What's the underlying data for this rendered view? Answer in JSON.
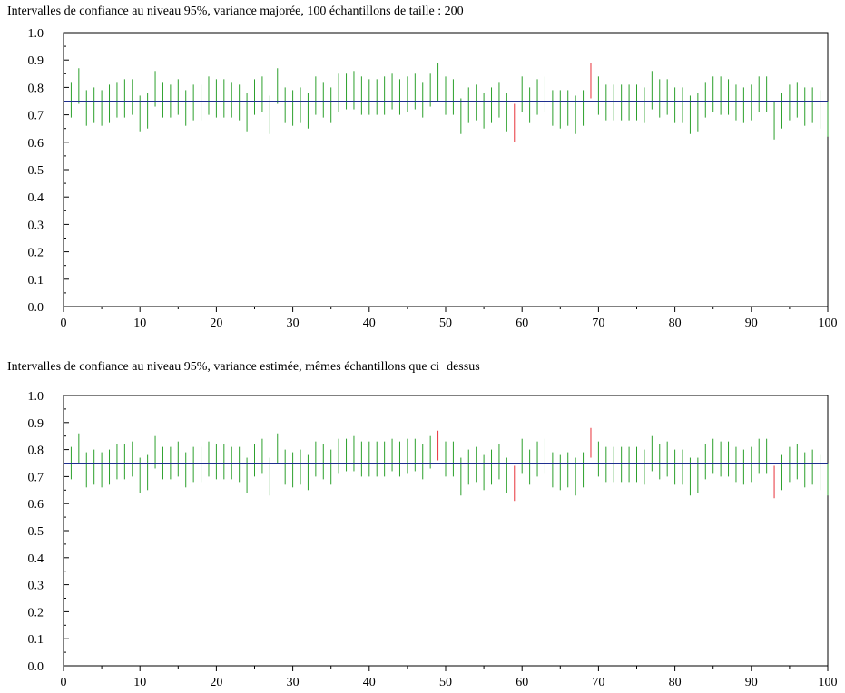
{
  "chart_data": [
    {
      "type": "interval",
      "title": "Intervalles de confiance au niveau 95%, variance majorée, 100 échantillons de taille : 200",
      "xlim": [
        0,
        100
      ],
      "ylim": [
        0.0,
        1.0
      ],
      "xticks": [
        0,
        10,
        20,
        30,
        40,
        50,
        60,
        70,
        80,
        90,
        100
      ],
      "xtick_labels": [
        "0",
        "10",
        "20",
        "30",
        "40",
        "50",
        "60",
        "70",
        "80",
        "90",
        "100"
      ],
      "yticks": [
        0.0,
        0.1,
        0.2,
        0.3,
        0.4,
        0.5,
        0.6,
        0.7,
        0.8,
        0.9,
        1.0
      ],
      "ytick_labels": [
        "0.0",
        "0.1",
        "0.2",
        "0.3",
        "0.4",
        "0.5",
        "0.6",
        "0.7",
        "0.8",
        "0.9",
        "1.0"
      ],
      "reference_line": 0.75,
      "grid": false,
      "colors": {
        "contains": "#2ca02c",
        "misses": "#e8323a",
        "reference": "#1f2f8f"
      },
      "intervals": [
        [
          0.69,
          0.82
        ],
        [
          0.74,
          0.87
        ],
        [
          0.66,
          0.79
        ],
        [
          0.67,
          0.8
        ],
        [
          0.66,
          0.79
        ],
        [
          0.67,
          0.81
        ],
        [
          0.69,
          0.82
        ],
        [
          0.69,
          0.83
        ],
        [
          0.7,
          0.83
        ],
        [
          0.64,
          0.77
        ],
        [
          0.65,
          0.78
        ],
        [
          0.73,
          0.86
        ],
        [
          0.69,
          0.82
        ],
        [
          0.69,
          0.81
        ],
        [
          0.7,
          0.83
        ],
        [
          0.66,
          0.79
        ],
        [
          0.68,
          0.81
        ],
        [
          0.68,
          0.81
        ],
        [
          0.7,
          0.84
        ],
        [
          0.69,
          0.83
        ],
        [
          0.69,
          0.83
        ],
        [
          0.69,
          0.82
        ],
        [
          0.68,
          0.81
        ],
        [
          0.64,
          0.78
        ],
        [
          0.7,
          0.83
        ],
        [
          0.71,
          0.84
        ],
        [
          0.63,
          0.77
        ],
        [
          0.74,
          0.87
        ],
        [
          0.67,
          0.8
        ],
        [
          0.66,
          0.79
        ],
        [
          0.67,
          0.8
        ],
        [
          0.65,
          0.78
        ],
        [
          0.7,
          0.84
        ],
        [
          0.69,
          0.82
        ],
        [
          0.67,
          0.8
        ],
        [
          0.71,
          0.85
        ],
        [
          0.72,
          0.85
        ],
        [
          0.72,
          0.86
        ],
        [
          0.7,
          0.84
        ],
        [
          0.7,
          0.83
        ],
        [
          0.7,
          0.83
        ],
        [
          0.7,
          0.84
        ],
        [
          0.72,
          0.85
        ],
        [
          0.7,
          0.83
        ],
        [
          0.71,
          0.84
        ],
        [
          0.72,
          0.85
        ],
        [
          0.69,
          0.82
        ],
        [
          0.73,
          0.85
        ],
        [
          0.75,
          0.89
        ],
        [
          0.7,
          0.84
        ],
        [
          0.7,
          0.83
        ],
        [
          0.63,
          0.76
        ],
        [
          0.67,
          0.8
        ],
        [
          0.68,
          0.81
        ],
        [
          0.65,
          0.78
        ],
        [
          0.67,
          0.8
        ],
        [
          0.69,
          0.82
        ],
        [
          0.64,
          0.78
        ],
        [
          0.6,
          0.74
        ],
        [
          0.71,
          0.84
        ],
        [
          0.67,
          0.8
        ],
        [
          0.7,
          0.83
        ],
        [
          0.71,
          0.84
        ],
        [
          0.66,
          0.79
        ],
        [
          0.65,
          0.79
        ],
        [
          0.66,
          0.79
        ],
        [
          0.63,
          0.77
        ],
        [
          0.66,
          0.79
        ],
        [
          0.76,
          0.89
        ],
        [
          0.7,
          0.84
        ],
        [
          0.68,
          0.81
        ],
        [
          0.68,
          0.81
        ],
        [
          0.68,
          0.81
        ],
        [
          0.68,
          0.81
        ],
        [
          0.68,
          0.81
        ],
        [
          0.67,
          0.8
        ],
        [
          0.72,
          0.86
        ],
        [
          0.69,
          0.83
        ],
        [
          0.7,
          0.83
        ],
        [
          0.67,
          0.8
        ],
        [
          0.67,
          0.8
        ],
        [
          0.63,
          0.77
        ],
        [
          0.64,
          0.78
        ],
        [
          0.69,
          0.82
        ],
        [
          0.71,
          0.84
        ],
        [
          0.7,
          0.84
        ],
        [
          0.7,
          0.83
        ],
        [
          0.68,
          0.81
        ],
        [
          0.67,
          0.8
        ],
        [
          0.68,
          0.81
        ],
        [
          0.71,
          0.84
        ],
        [
          0.71,
          0.84
        ],
        [
          0.61,
          0.75
        ],
        [
          0.65,
          0.78
        ],
        [
          0.68,
          0.81
        ],
        [
          0.69,
          0.82
        ],
        [
          0.66,
          0.8
        ],
        [
          0.67,
          0.8
        ],
        [
          0.65,
          0.79
        ],
        [
          0.62,
          0.75
        ]
      ]
    },
    {
      "type": "interval",
      "title": "Intervalles de confiance au niveau 95%, variance estimée, mêmes échantillons que ci−dessus",
      "xlim": [
        0,
        100
      ],
      "ylim": [
        0.0,
        1.0
      ],
      "xticks": [
        0,
        10,
        20,
        30,
        40,
        50,
        60,
        70,
        80,
        90,
        100
      ],
      "xtick_labels": [
        "0",
        "10",
        "20",
        "30",
        "40",
        "50",
        "60",
        "70",
        "80",
        "90",
        "100"
      ],
      "yticks": [
        0.0,
        0.1,
        0.2,
        0.3,
        0.4,
        0.5,
        0.6,
        0.7,
        0.8,
        0.9,
        1.0
      ],
      "ytick_labels": [
        "0.0",
        "0.1",
        "0.2",
        "0.3",
        "0.4",
        "0.5",
        "0.6",
        "0.7",
        "0.8",
        "0.9",
        "1.0"
      ],
      "reference_line": 0.75,
      "grid": false,
      "colors": {
        "contains": "#2ca02c",
        "misses": "#e8323a",
        "reference": "#1f2f8f"
      },
      "intervals": [
        [
          0.69,
          0.81
        ],
        [
          0.75,
          0.86
        ],
        [
          0.66,
          0.79
        ],
        [
          0.67,
          0.8
        ],
        [
          0.66,
          0.79
        ],
        [
          0.67,
          0.8
        ],
        [
          0.69,
          0.82
        ],
        [
          0.69,
          0.82
        ],
        [
          0.7,
          0.83
        ],
        [
          0.64,
          0.77
        ],
        [
          0.65,
          0.78
        ],
        [
          0.73,
          0.85
        ],
        [
          0.69,
          0.81
        ],
        [
          0.69,
          0.81
        ],
        [
          0.7,
          0.83
        ],
        [
          0.66,
          0.79
        ],
        [
          0.68,
          0.81
        ],
        [
          0.68,
          0.81
        ],
        [
          0.7,
          0.83
        ],
        [
          0.69,
          0.82
        ],
        [
          0.69,
          0.82
        ],
        [
          0.69,
          0.81
        ],
        [
          0.68,
          0.81
        ],
        [
          0.64,
          0.77
        ],
        [
          0.7,
          0.82
        ],
        [
          0.71,
          0.84
        ],
        [
          0.63,
          0.77
        ],
        [
          0.75,
          0.86
        ],
        [
          0.67,
          0.8
        ],
        [
          0.66,
          0.79
        ],
        [
          0.67,
          0.8
        ],
        [
          0.65,
          0.78
        ],
        [
          0.7,
          0.83
        ],
        [
          0.69,
          0.82
        ],
        [
          0.67,
          0.8
        ],
        [
          0.71,
          0.84
        ],
        [
          0.72,
          0.84
        ],
        [
          0.72,
          0.85
        ],
        [
          0.7,
          0.83
        ],
        [
          0.7,
          0.83
        ],
        [
          0.7,
          0.83
        ],
        [
          0.7,
          0.83
        ],
        [
          0.72,
          0.84
        ],
        [
          0.7,
          0.83
        ],
        [
          0.71,
          0.84
        ],
        [
          0.72,
          0.84
        ],
        [
          0.69,
          0.82
        ],
        [
          0.73,
          0.85
        ],
        [
          0.76,
          0.87
        ],
        [
          0.7,
          0.83
        ],
        [
          0.7,
          0.83
        ],
        [
          0.63,
          0.77
        ],
        [
          0.67,
          0.8
        ],
        [
          0.68,
          0.81
        ],
        [
          0.65,
          0.78
        ],
        [
          0.67,
          0.8
        ],
        [
          0.69,
          0.82
        ],
        [
          0.64,
          0.77
        ],
        [
          0.61,
          0.74
        ],
        [
          0.71,
          0.84
        ],
        [
          0.67,
          0.8
        ],
        [
          0.7,
          0.83
        ],
        [
          0.71,
          0.84
        ],
        [
          0.66,
          0.79
        ],
        [
          0.65,
          0.78
        ],
        [
          0.66,
          0.79
        ],
        [
          0.63,
          0.77
        ],
        [
          0.66,
          0.79
        ],
        [
          0.77,
          0.88
        ],
        [
          0.7,
          0.83
        ],
        [
          0.68,
          0.81
        ],
        [
          0.68,
          0.81
        ],
        [
          0.68,
          0.81
        ],
        [
          0.68,
          0.81
        ],
        [
          0.68,
          0.81
        ],
        [
          0.67,
          0.8
        ],
        [
          0.72,
          0.85
        ],
        [
          0.69,
          0.82
        ],
        [
          0.7,
          0.83
        ],
        [
          0.67,
          0.8
        ],
        [
          0.67,
          0.8
        ],
        [
          0.63,
          0.77
        ],
        [
          0.64,
          0.77
        ],
        [
          0.69,
          0.82
        ],
        [
          0.71,
          0.84
        ],
        [
          0.7,
          0.83
        ],
        [
          0.7,
          0.83
        ],
        [
          0.68,
          0.81
        ],
        [
          0.67,
          0.8
        ],
        [
          0.68,
          0.81
        ],
        [
          0.71,
          0.84
        ],
        [
          0.71,
          0.84
        ],
        [
          0.62,
          0.74
        ],
        [
          0.65,
          0.78
        ],
        [
          0.68,
          0.81
        ],
        [
          0.69,
          0.82
        ],
        [
          0.66,
          0.79
        ],
        [
          0.67,
          0.8
        ],
        [
          0.65,
          0.78
        ],
        [
          0.63,
          0.75
        ]
      ]
    }
  ]
}
